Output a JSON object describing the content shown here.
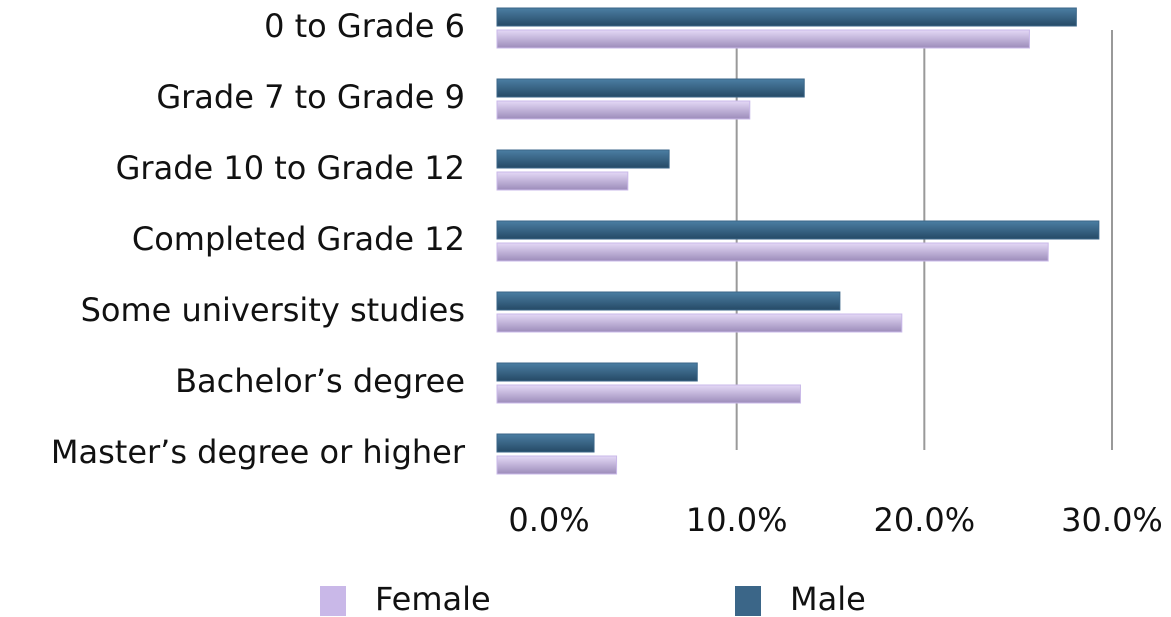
{
  "chart_data": {
    "type": "bar",
    "orientation": "horizontal",
    "categories": [
      "0 to Grade 6",
      "Grade 7 to Grade 9",
      "Grade 10 to Grade 12",
      "Completed Grade 12",
      "Some university studies",
      "Bachelor’s degree",
      "Master’s degree or higher"
    ],
    "series": [
      {
        "name": "Female",
        "color": "#c9b8e8",
        "values": [
          25.6,
          10.7,
          4.2,
          26.6,
          18.8,
          13.4,
          3.6
        ]
      },
      {
        "name": "Male",
        "color": "#3b6688",
        "values": [
          28.1,
          13.6,
          6.4,
          29.3,
          15.5,
          7.9,
          2.4
        ]
      }
    ],
    "xlim": [
      0,
      30
    ],
    "xticks": [
      {
        "value": 0,
        "label": "0.0%"
      },
      {
        "value": 10,
        "label": "10.0%"
      },
      {
        "value": 20,
        "label": "20.0%"
      },
      {
        "value": 30,
        "label": "30.0%"
      }
    ],
    "grid": true,
    "legend": "bottom"
  }
}
